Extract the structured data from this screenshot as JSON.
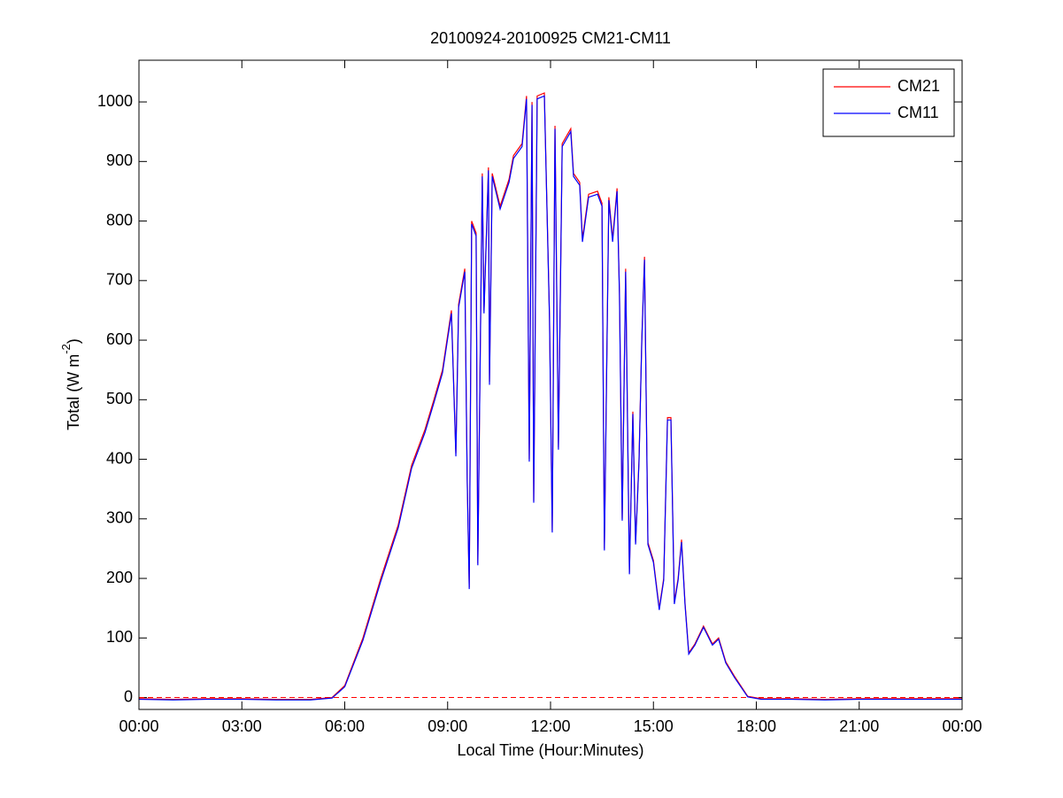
{
  "chart_data": {
    "type": "line",
    "title": "20100924-20100925 CM21-CM11",
    "x_label": "Local Time (Hour:Minutes)",
    "y_label": {
      "text": "Total (W m",
      "superscript": "-2",
      "suffix": ")"
    },
    "x": [
      0,
      1,
      2,
      3,
      4,
      5,
      5.63,
      6.0,
      6.53,
      7.05,
      7.56,
      7.95,
      8.34,
      8.6,
      8.85,
      9.11,
      9.24,
      9.32,
      9.5,
      9.57,
      9.63,
      9.7,
      9.83,
      9.88,
      10.01,
      10.06,
      10.19,
      10.22,
      10.3,
      10.53,
      10.79,
      10.92,
      11.17,
      11.3,
      11.38,
      11.46,
      11.51,
      11.61,
      11.82,
      11.97,
      12.05,
      12.13,
      12.23,
      12.34,
      12.59,
      12.67,
      12.85,
      12.93,
      13.11,
      13.37,
      13.5,
      13.57,
      13.7,
      13.81,
      13.94,
      14.01,
      14.09,
      14.19,
      14.3,
      14.4,
      14.48,
      14.58,
      14.66,
      14.74,
      14.84,
      15.0,
      15.17,
      15.3,
      15.41,
      15.51,
      15.61,
      15.72,
      15.82,
      15.92,
      16.03,
      16.21,
      16.46,
      16.72,
      16.9,
      17.11,
      17.37,
      17.75,
      18.14,
      19,
      20,
      21,
      22,
      23,
      24
    ],
    "series": [
      {
        "name": "CM21",
        "color": "#ff0000",
        "values": [
          -2,
          -3,
          -2,
          -2,
          -3,
          -3,
          0,
          20,
          100,
          200,
          290,
          390,
          450,
          500,
          550,
          650,
          410,
          660,
          720,
          370,
          185,
          800,
          780,
          225,
          880,
          650,
          890,
          530,
          880,
          825,
          870,
          910,
          930,
          1010,
          400,
          1000,
          330,
          1010,
          1015,
          640,
          280,
          960,
          420,
          930,
          955,
          880,
          865,
          770,
          845,
          850,
          830,
          250,
          840,
          770,
          855,
          680,
          300,
          720,
          210,
          480,
          260,
          400,
          600,
          740,
          260,
          230,
          150,
          200,
          470,
          470,
          160,
          200,
          265,
          160,
          75,
          90,
          120,
          90,
          100,
          60,
          35,
          2,
          -2,
          -2,
          -3,
          -2,
          -2,
          -2,
          -2
        ]
      },
      {
        "name": "CM11",
        "color": "#0000ff",
        "values": [
          -3,
          -4,
          -3,
          -3,
          -4,
          -4,
          -1,
          18,
          96,
          195,
          285,
          385,
          445,
          495,
          545,
          645,
          405,
          655,
          715,
          365,
          182,
          795,
          775,
          222,
          875,
          645,
          885,
          525,
          875,
          820,
          865,
          905,
          925,
          1005,
          396,
          995,
          327,
          1005,
          1010,
          636,
          277,
          955,
          416,
          925,
          950,
          875,
          860,
          765,
          840,
          845,
          825,
          247,
          835,
          765,
          850,
          675,
          297,
          715,
          207,
          476,
          257,
          396,
          596,
          735,
          257,
          227,
          147,
          197,
          466,
          466,
          157,
          197,
          261,
          157,
          73,
          88,
          118,
          88,
          98,
          58,
          33,
          1,
          -3,
          -3,
          -4,
          -3,
          -3,
          -3,
          -3
        ]
      }
    ],
    "xlim": [
      0,
      24
    ],
    "xticks": [
      {
        "value": 0,
        "label": "00:00"
      },
      {
        "value": 3,
        "label": "03:00"
      },
      {
        "value": 6,
        "label": "06:00"
      },
      {
        "value": 9,
        "label": "09:00"
      },
      {
        "value": 12,
        "label": "12:00"
      },
      {
        "value": 15,
        "label": "15:00"
      },
      {
        "value": 18,
        "label": "18:00"
      },
      {
        "value": 21,
        "label": "21:00"
      },
      {
        "value": 24,
        "label": "00:00"
      }
    ],
    "ylim": [
      -20,
      1070
    ],
    "yticks": [
      0,
      100,
      200,
      300,
      400,
      500,
      600,
      700,
      800,
      900,
      1000
    ],
    "reference_line": {
      "value": 0,
      "color": "#ff0000",
      "style": "dashed"
    },
    "legend": "upper right",
    "grid": false
  }
}
